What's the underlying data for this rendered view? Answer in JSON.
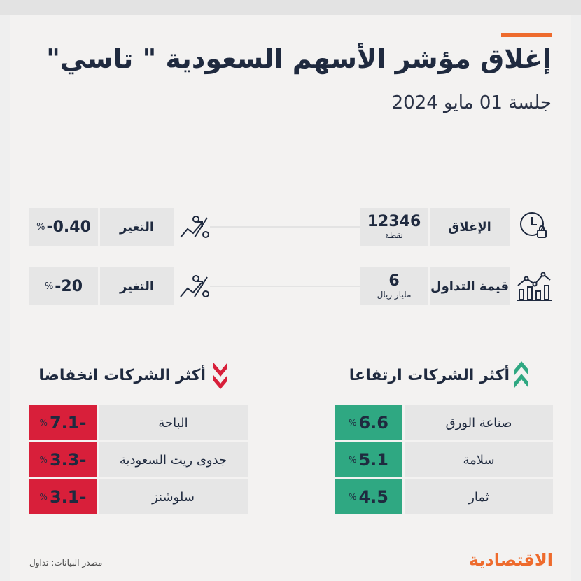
{
  "header": {
    "title": "إغلاق مؤشر الأسهم السعودية \" تاسي\"",
    "subtitle": "جلسة 01 مايو 2024"
  },
  "stats": {
    "close": {
      "label": "الإغلاق",
      "value": "12346",
      "unit": "نقطة",
      "icon": "clock-lock-icon"
    },
    "close_change": {
      "label": "التغير",
      "value": "-0.40",
      "pct": "%",
      "icon": "percent-trend-icon"
    },
    "trading": {
      "label": "قيمة التداول",
      "value": "6",
      "unit": "مليار ريال",
      "icon": "bar-chart-trend-icon"
    },
    "trading_change": {
      "label": "التغير",
      "value": "-20",
      "pct": "%",
      "icon": "percent-trend-icon"
    }
  },
  "gainers": {
    "title": "أكثر الشركات ارتفاعا",
    "icon": "double-chevron-up-icon",
    "rows": [
      {
        "name": "صناعة الورق",
        "value": "6.6",
        "pct": "%"
      },
      {
        "name": "سلامة",
        "value": "5.1",
        "pct": "%"
      },
      {
        "name": "ثمار",
        "value": "4.5",
        "pct": "%"
      }
    ]
  },
  "losers": {
    "title": "أكثر الشركات انخفاضا",
    "icon": "double-chevron-down-icon",
    "rows": [
      {
        "name": "الباحة",
        "value": "7.1-",
        "pct": "%"
      },
      {
        "name": "جدوى ريت السعودية",
        "value": "3.3-",
        "pct": "%"
      },
      {
        "name": "سلوشنز",
        "value": "3.1-",
        "pct": "%"
      }
    ]
  },
  "footer": {
    "source": "مصدر البيانات: تداول",
    "logo": "الاقتصادية"
  },
  "colors": {
    "accent": "#ee6b2d",
    "up": "#2fa882",
    "down": "#d81f3a",
    "text": "#1f2a3f"
  }
}
